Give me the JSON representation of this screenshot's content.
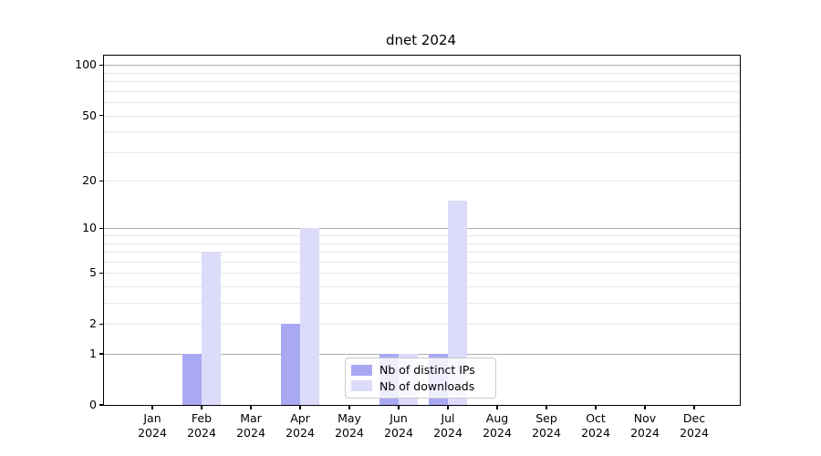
{
  "chart_data": {
    "type": "bar",
    "title": "dnet 2024",
    "categories": [
      "Jan",
      "Feb",
      "Mar",
      "Apr",
      "May",
      "Jun",
      "Jul",
      "Aug",
      "Sep",
      "Oct",
      "Nov",
      "Dec"
    ],
    "category_year": "2024",
    "series": [
      {
        "name": "Nb of distinct IPs",
        "color": "#a9a9f3",
        "values": [
          0,
          1,
          0,
          2,
          0,
          1,
          1,
          0,
          0,
          0,
          0,
          0
        ]
      },
      {
        "name": "Nb of downloads",
        "color": "#dcdcfa",
        "values": [
          0,
          7,
          0,
          10,
          0,
          1,
          15,
          0,
          0,
          0,
          0,
          0
        ]
      }
    ],
    "xlabel": "",
    "ylabel": "",
    "yscale": "log1p",
    "ylim": [
      0,
      114
    ],
    "ytick_values": [
      0,
      1,
      2,
      5,
      10,
      20,
      50,
      100
    ],
    "ytick_labels": [
      "0",
      "1",
      "2",
      "5",
      "10",
      "20",
      "50",
      "100"
    ],
    "major_gridlines": [
      1,
      10,
      100
    ],
    "minor_gridlines": [
      2,
      3,
      4,
      5,
      6,
      7,
      8,
      9,
      20,
      30,
      40,
      50,
      60,
      70,
      80,
      90
    ],
    "grid": true,
    "legend_position": "lower-center-inside"
  },
  "colors": {
    "background": "#ffffff",
    "spine": "#000000",
    "text": "#000000",
    "major_grid": "#adadad",
    "minor_grid": "#e8e8e8",
    "legend_border": "#cccccc",
    "bar_distinct_ips": "#a9a9f3",
    "bar_downloads": "#dcdcfa"
  }
}
